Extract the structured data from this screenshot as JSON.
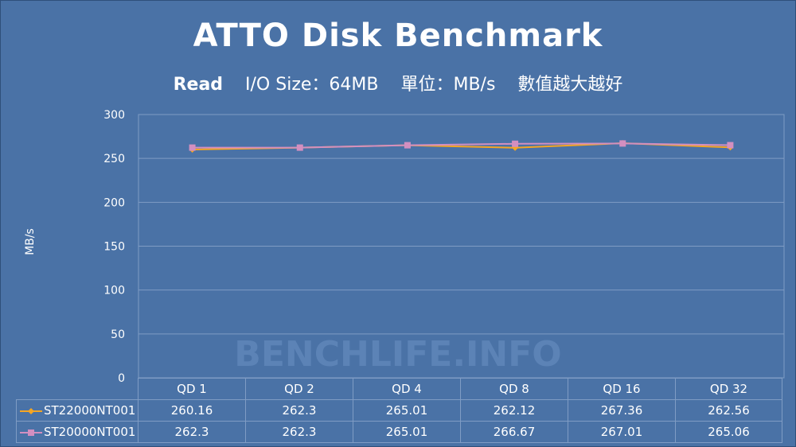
{
  "chart_data": {
    "type": "line",
    "title": "ATTO Disk Benchmark",
    "subtitle": {
      "mode": "Read",
      "io_size": "I/O Size：64MB",
      "unit": "單位：MB/s",
      "note": "數值越大越好"
    },
    "ylabel": "MB/s",
    "xlabel": "",
    "ylim": [
      0,
      300
    ],
    "yticks": [
      0,
      50,
      100,
      150,
      200,
      250,
      300
    ],
    "grid": true,
    "legend": "data-table",
    "categories": [
      "QD 1",
      "QD 2",
      "QD 4",
      "QD 8",
      "QD 16",
      "QD 32"
    ],
    "series": [
      {
        "name": "ST22000NT001",
        "color": "#f5a623",
        "marker": "diamond",
        "values": [
          260.16,
          262.3,
          265.01,
          262.12,
          267.36,
          262.56
        ],
        "labels": [
          "260.16",
          "262.3",
          "265.01",
          "262.12",
          "267.36",
          "262.56"
        ]
      },
      {
        "name": "ST20000NT001",
        "color": "#d38fc0",
        "marker": "square",
        "values": [
          262.3,
          262.3,
          265.01,
          266.67,
          267.01,
          265.06
        ],
        "labels": [
          "262.3",
          "262.3",
          "265.01",
          "266.67",
          "267.01",
          "265.06"
        ]
      }
    ]
  },
  "watermark": "BENCHLIFE.INFO"
}
